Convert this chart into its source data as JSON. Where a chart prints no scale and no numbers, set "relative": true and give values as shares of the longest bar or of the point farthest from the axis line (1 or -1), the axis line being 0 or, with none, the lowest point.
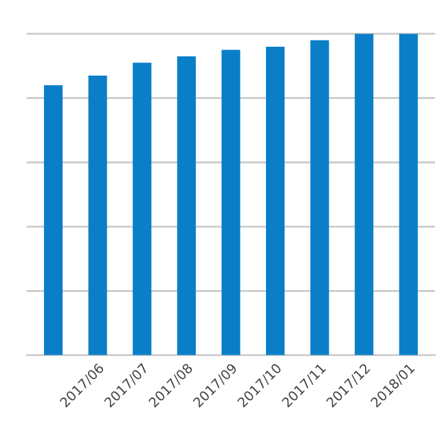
{
  "chart_data": {
    "type": "bar",
    "relative": true,
    "categories": [
      null,
      "2017/06",
      "2017/07",
      "2017/08",
      "2017/09",
      "2017/10",
      "2017/11",
      "2017/12",
      "2018/01"
    ],
    "values": [
      0.84,
      0.87,
      0.91,
      0.93,
      0.95,
      0.96,
      0.98,
      1,
      1
    ],
    "color": "#0a7fc8",
    "grid": "y"
  }
}
